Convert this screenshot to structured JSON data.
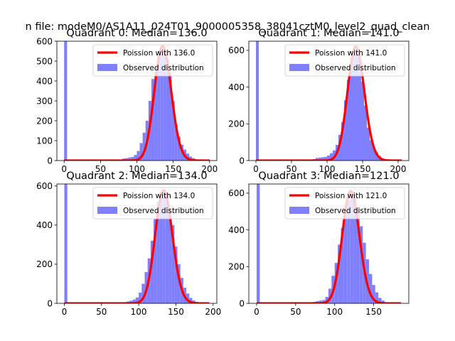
{
  "figure_title": "n file: modeM0/AS1A11_024T01_9000005358_38041cztM0_level2_quad_clean",
  "colors": {
    "fit_line": "#ff0000",
    "histogram": "#8080ff",
    "axes": "#000000",
    "background": "#ffffff"
  },
  "chart_data": [
    {
      "type": "bar",
      "title": "Quadrant 0: Median=136.0",
      "xlim": [
        -10,
        210
      ],
      "ylim": [
        0,
        600
      ],
      "xticks": [
        0,
        50,
        100,
        150,
        200
      ],
      "yticks": [
        0,
        100,
        200,
        300,
        400,
        500,
        600
      ],
      "grid": false,
      "legend_position": "top-right",
      "legend": [
        "Poission with 136.0",
        "Observed distribution"
      ],
      "series": [
        {
          "name": "Poission with 136.0",
          "kind": "line",
          "mean": 136.0,
          "peak": 575,
          "x_range": [
            0,
            200
          ]
        },
        {
          "name": "Observed distribution",
          "kind": "histogram",
          "bin_width": 4,
          "bins": [
            [
              0,
              600
            ],
            [
              76,
              4
            ],
            [
              80,
              10
            ],
            [
              84,
              12
            ],
            [
              88,
              15
            ],
            [
              92,
              18
            ],
            [
              96,
              28
            ],
            [
              100,
              48
            ],
            [
              104,
              88
            ],
            [
              108,
              140
            ],
            [
              112,
              200
            ],
            [
              116,
              300
            ],
            [
              120,
              410
            ],
            [
              124,
              470
            ],
            [
              128,
              520
            ],
            [
              132,
              565
            ],
            [
              136,
              550
            ],
            [
              140,
              510
            ],
            [
              144,
              440
            ],
            [
              148,
              300
            ],
            [
              152,
              180
            ],
            [
              156,
              120
            ],
            [
              160,
              80
            ],
            [
              164,
              55
            ],
            [
              168,
              35
            ],
            [
              172,
              20
            ],
            [
              176,
              12
            ],
            [
              180,
              6
            ],
            [
              184,
              3
            ],
            [
              196,
              4
            ]
          ]
        }
      ]
    },
    {
      "type": "bar",
      "title": "Quadrant 1: Median=141.0",
      "xlim": [
        -10,
        215
      ],
      "ylim": [
        0,
        650
      ],
      "xticks": [
        0,
        50,
        100,
        150,
        200
      ],
      "yticks": [
        0,
        200,
        400,
        600
      ],
      "grid": false,
      "legend_position": "top-right",
      "legend": [
        "Poission with 141.0",
        "Observed distribution"
      ],
      "series": [
        {
          "name": "Poission with 141.0",
          "kind": "line",
          "mean": 141.0,
          "peak": 620,
          "x_range": [
            0,
            205
          ]
        },
        {
          "name": "Observed distribution",
          "kind": "histogram",
          "bin_width": 4,
          "bins": [
            [
              0,
              650
            ],
            [
              76,
              4
            ],
            [
              80,
              8
            ],
            [
              84,
              14
            ],
            [
              88,
              16
            ],
            [
              92,
              18
            ],
            [
              96,
              20
            ],
            [
              100,
              28
            ],
            [
              104,
              40
            ],
            [
              108,
              55
            ],
            [
              112,
              85
            ],
            [
              116,
              140
            ],
            [
              120,
              210
            ],
            [
              124,
              330
            ],
            [
              128,
              440
            ],
            [
              132,
              530
            ],
            [
              136,
              600
            ],
            [
              140,
              610
            ],
            [
              144,
              560
            ],
            [
              148,
              430
            ],
            [
              152,
              300
            ],
            [
              156,
              180
            ],
            [
              160,
              110
            ],
            [
              164,
              70
            ],
            [
              168,
              45
            ],
            [
              172,
              25
            ],
            [
              176,
              12
            ],
            [
              180,
              6
            ],
            [
              184,
              3
            ]
          ]
        }
      ]
    },
    {
      "type": "bar",
      "title": "Quadrant 2: Median=134.0",
      "xlim": [
        -10,
        205
      ],
      "ylim": [
        0,
        610
      ],
      "xticks": [
        0,
        50,
        100,
        150,
        200
      ],
      "yticks": [
        0,
        200,
        400,
        600
      ],
      "grid": false,
      "legend_position": "top-right",
      "legend": [
        "Poission with 134.0",
        "Observed distribution"
      ],
      "series": [
        {
          "name": "Poission with 134.0",
          "kind": "line",
          "mean": 134.0,
          "peak": 578,
          "x_range": [
            0,
            195
          ]
        },
        {
          "name": "Observed distribution",
          "kind": "histogram",
          "bin_width": 4,
          "bins": [
            [
              0,
              610
            ],
            [
              80,
              6
            ],
            [
              84,
              10
            ],
            [
              88,
              14
            ],
            [
              92,
              20
            ],
            [
              96,
              30
            ],
            [
              100,
              55
            ],
            [
              104,
              100
            ],
            [
              108,
              160
            ],
            [
              112,
              230
            ],
            [
              116,
              320
            ],
            [
              120,
              430
            ],
            [
              124,
              520
            ],
            [
              128,
              570
            ],
            [
              132,
              580
            ],
            [
              136,
              560
            ],
            [
              140,
              490
            ],
            [
              144,
              400
            ],
            [
              148,
              290
            ],
            [
              152,
              200
            ],
            [
              156,
              130
            ],
            [
              160,
              80
            ],
            [
              164,
              50
            ],
            [
              168,
              28
            ],
            [
              172,
              15
            ],
            [
              176,
              8
            ],
            [
              180,
              3
            ]
          ]
        }
      ]
    },
    {
      "type": "bar",
      "title": "Quadrant 3: Median=121.0",
      "xlim": [
        -10,
        195
      ],
      "ylim": [
        0,
        650
      ],
      "xticks": [
        0,
        50,
        100,
        150
      ],
      "yticks": [
        0,
        200,
        400,
        600
      ],
      "grid": false,
      "legend_position": "top-right",
      "legend": [
        "Poission with 121.0",
        "Observed distribution"
      ],
      "series": [
        {
          "name": "Poission with 121.0",
          "kind": "line",
          "mean": 121.0,
          "peak": 612,
          "x_range": [
            0,
            185
          ]
        },
        {
          "name": "Observed distribution",
          "kind": "histogram",
          "bin_width": 4,
          "bins": [
            [
              0,
              650
            ],
            [
              68,
              5
            ],
            [
              72,
              8
            ],
            [
              76,
              12
            ],
            [
              80,
              15
            ],
            [
              84,
              18
            ],
            [
              88,
              35
            ],
            [
              92,
              80
            ],
            [
              96,
              150
            ],
            [
              100,
              220
            ],
            [
              104,
              320
            ],
            [
              108,
              410
            ],
            [
              112,
              500
            ],
            [
              116,
              560
            ],
            [
              120,
              600
            ],
            [
              124,
              590
            ],
            [
              128,
              520
            ],
            [
              132,
              420
            ],
            [
              136,
              330
            ],
            [
              140,
              240
            ],
            [
              144,
              160
            ],
            [
              148,
              100
            ],
            [
              152,
              60
            ],
            [
              156,
              30
            ],
            [
              160,
              15
            ],
            [
              164,
              6
            ]
          ]
        }
      ]
    }
  ]
}
